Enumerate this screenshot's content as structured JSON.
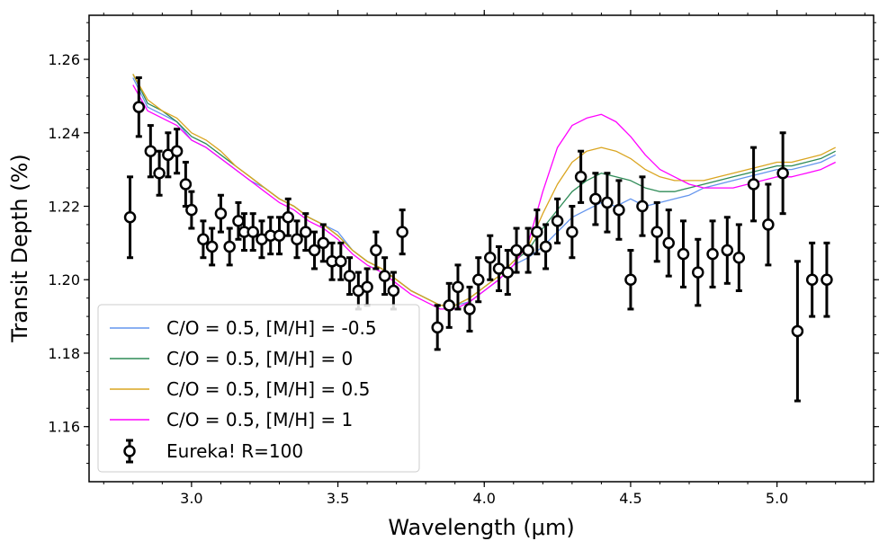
{
  "chart_data": {
    "type": "line",
    "xlabel": "Wavelength (μm)",
    "ylabel": "Transit Depth (%)",
    "xlim": [
      2.65,
      5.33
    ],
    "ylim": [
      1.145,
      1.272
    ],
    "x_ticks": [
      "3.0",
      "3.5",
      "4.0",
      "4.5",
      "5.0"
    ],
    "y_ticks": [
      "1.16",
      "1.18",
      "1.20",
      "1.22",
      "1.24",
      "1.26"
    ],
    "legend_position": "lower-left",
    "grid": false,
    "series": [
      {
        "name": "C/O = 0.5, [M/H] = -0.5",
        "color": "#6495ed",
        "x": [
          2.8,
          2.85,
          2.9,
          2.95,
          3.0,
          3.05,
          3.1,
          3.15,
          3.2,
          3.25,
          3.3,
          3.35,
          3.4,
          3.45,
          3.5,
          3.55,
          3.6,
          3.65,
          3.7,
          3.75,
          3.8,
          3.85,
          3.9,
          3.95,
          4.0,
          4.05,
          4.1,
          4.15,
          4.2,
          4.25,
          4.3,
          4.35,
          4.4,
          4.45,
          4.5,
          4.55,
          4.6,
          4.65,
          4.7,
          4.75,
          4.8,
          4.85,
          4.9,
          4.95,
          5.0,
          5.05,
          5.1,
          5.15,
          5.2
        ],
        "y": [
          1.255,
          1.247,
          1.245,
          1.243,
          1.238,
          1.236,
          1.233,
          1.23,
          1.227,
          1.225,
          1.222,
          1.22,
          1.217,
          1.215,
          1.213,
          1.208,
          1.205,
          1.203,
          1.2,
          1.197,
          1.195,
          1.193,
          1.193,
          1.194,
          1.197,
          1.2,
          1.204,
          1.206,
          1.209,
          1.213,
          1.217,
          1.219,
          1.221,
          1.22,
          1.222,
          1.22,
          1.221,
          1.222,
          1.223,
          1.225,
          1.226,
          1.227,
          1.228,
          1.229,
          1.23,
          1.23,
          1.231,
          1.232,
          1.234
        ]
      },
      {
        "name": "C/O = 0.5, [M/H] = 0",
        "color": "#2e8b57",
        "x": [
          2.8,
          2.85,
          2.9,
          2.95,
          3.0,
          3.05,
          3.1,
          3.15,
          3.2,
          3.25,
          3.3,
          3.35,
          3.4,
          3.45,
          3.5,
          3.55,
          3.6,
          3.65,
          3.7,
          3.75,
          3.8,
          3.85,
          3.9,
          3.95,
          4.0,
          4.05,
          4.1,
          4.15,
          4.2,
          4.25,
          4.3,
          4.35,
          4.4,
          4.45,
          4.5,
          4.55,
          4.6,
          4.65,
          4.7,
          4.75,
          4.8,
          4.85,
          4.9,
          4.95,
          5.0,
          5.05,
          5.1,
          5.15,
          5.2
        ],
        "y": [
          1.256,
          1.248,
          1.246,
          1.243,
          1.239,
          1.237,
          1.234,
          1.231,
          1.228,
          1.225,
          1.222,
          1.22,
          1.217,
          1.215,
          1.212,
          1.208,
          1.205,
          1.203,
          1.2,
          1.197,
          1.195,
          1.193,
          1.193,
          1.195,
          1.198,
          1.201,
          1.205,
          1.208,
          1.214,
          1.219,
          1.224,
          1.227,
          1.229,
          1.228,
          1.227,
          1.225,
          1.224,
          1.224,
          1.225,
          1.226,
          1.227,
          1.228,
          1.229,
          1.23,
          1.231,
          1.231,
          1.232,
          1.233,
          1.235
        ]
      },
      {
        "name": "C/O = 0.5, [M/H] = 0.5",
        "color": "#daa520",
        "x": [
          2.8,
          2.85,
          2.9,
          2.95,
          3.0,
          3.05,
          3.1,
          3.15,
          3.2,
          3.25,
          3.3,
          3.35,
          3.4,
          3.45,
          3.5,
          3.55,
          3.6,
          3.65,
          3.7,
          3.75,
          3.8,
          3.85,
          3.9,
          3.95,
          4.0,
          4.05,
          4.1,
          4.15,
          4.2,
          4.25,
          4.3,
          4.35,
          4.4,
          4.45,
          4.5,
          4.55,
          4.6,
          4.65,
          4.7,
          4.75,
          4.8,
          4.85,
          4.9,
          4.95,
          5.0,
          5.05,
          5.1,
          5.15,
          5.2
        ],
        "y": [
          1.256,
          1.249,
          1.246,
          1.244,
          1.24,
          1.238,
          1.235,
          1.231,
          1.228,
          1.225,
          1.222,
          1.22,
          1.217,
          1.215,
          1.212,
          1.208,
          1.205,
          1.203,
          1.2,
          1.197,
          1.195,
          1.193,
          1.193,
          1.195,
          1.198,
          1.201,
          1.205,
          1.209,
          1.218,
          1.226,
          1.232,
          1.235,
          1.236,
          1.235,
          1.233,
          1.23,
          1.228,
          1.227,
          1.227,
          1.227,
          1.228,
          1.229,
          1.23,
          1.231,
          1.232,
          1.232,
          1.233,
          1.234,
          1.236
        ]
      },
      {
        "name": "C/O = 0.5, [M/H] = 1",
        "color": "#ff00ff",
        "x": [
          2.8,
          2.85,
          2.9,
          2.95,
          3.0,
          3.05,
          3.1,
          3.15,
          3.2,
          3.25,
          3.3,
          3.35,
          3.4,
          3.45,
          3.5,
          3.55,
          3.6,
          3.65,
          3.7,
          3.75,
          3.8,
          3.85,
          3.9,
          3.95,
          4.0,
          4.05,
          4.1,
          4.15,
          4.2,
          4.25,
          4.3,
          4.35,
          4.4,
          4.45,
          4.5,
          4.55,
          4.6,
          4.65,
          4.7,
          4.75,
          4.8,
          4.85,
          4.9,
          4.95,
          5.0,
          5.05,
          5.1,
          5.15,
          5.2
        ],
        "y": [
          1.253,
          1.246,
          1.244,
          1.242,
          1.238,
          1.236,
          1.233,
          1.23,
          1.227,
          1.224,
          1.221,
          1.219,
          1.216,
          1.214,
          1.211,
          1.207,
          1.204,
          1.202,
          1.199,
          1.196,
          1.194,
          1.192,
          1.192,
          1.194,
          1.197,
          1.2,
          1.204,
          1.21,
          1.224,
          1.236,
          1.242,
          1.244,
          1.245,
          1.243,
          1.239,
          1.234,
          1.23,
          1.228,
          1.226,
          1.225,
          1.225,
          1.225,
          1.226,
          1.227,
          1.228,
          1.228,
          1.229,
          1.23,
          1.232
        ]
      }
    ],
    "points": {
      "name": "Eureka! R=100",
      "x": [
        2.79,
        2.82,
        2.86,
        2.89,
        2.92,
        2.95,
        2.98,
        3.0,
        3.04,
        3.07,
        3.1,
        3.13,
        3.16,
        3.18,
        3.21,
        3.24,
        3.27,
        3.3,
        3.33,
        3.36,
        3.39,
        3.42,
        3.45,
        3.48,
        3.51,
        3.54,
        3.57,
        3.6,
        3.63,
        3.66,
        3.69,
        3.72,
        3.84,
        3.88,
        3.91,
        3.95,
        3.98,
        4.02,
        4.05,
        4.08,
        4.11,
        4.15,
        4.18,
        4.21,
        4.25,
        4.3,
        4.33,
        4.38,
        4.42,
        4.46,
        4.5,
        4.54,
        4.59,
        4.63,
        4.68,
        4.73,
        4.78,
        4.83,
        4.87,
        4.92,
        4.97,
        5.02,
        5.07,
        5.12,
        5.17
      ],
      "y": [
        1.217,
        1.247,
        1.235,
        1.229,
        1.234,
        1.235,
        1.226,
        1.219,
        1.211,
        1.209,
        1.218,
        1.209,
        1.216,
        1.213,
        1.213,
        1.211,
        1.212,
        1.212,
        1.217,
        1.211,
        1.213,
        1.208,
        1.21,
        1.205,
        1.205,
        1.201,
        1.197,
        1.198,
        1.208,
        1.201,
        1.197,
        1.213,
        1.187,
        1.193,
        1.198,
        1.192,
        1.2,
        1.206,
        1.203,
        1.202,
        1.208,
        1.208,
        1.213,
        1.209,
        1.216,
        1.213,
        1.228,
        1.222,
        1.221,
        1.219,
        1.2,
        1.22,
        1.213,
        1.21,
        1.207,
        1.202,
        1.207,
        1.208,
        1.206,
        1.226,
        1.215,
        1.229,
        1.186,
        1.2,
        1.2
      ],
      "yerr": [
        0.011,
        0.008,
        0.007,
        0.006,
        0.006,
        0.006,
        0.006,
        0.005,
        0.005,
        0.005,
        0.005,
        0.005,
        0.005,
        0.005,
        0.005,
        0.005,
        0.005,
        0.005,
        0.005,
        0.005,
        0.005,
        0.005,
        0.005,
        0.005,
        0.005,
        0.005,
        0.005,
        0.005,
        0.005,
        0.005,
        0.005,
        0.006,
        0.006,
        0.006,
        0.006,
        0.006,
        0.006,
        0.006,
        0.006,
        0.006,
        0.006,
        0.006,
        0.006,
        0.006,
        0.006,
        0.007,
        0.007,
        0.007,
        0.008,
        0.008,
        0.008,
        0.008,
        0.008,
        0.009,
        0.009,
        0.009,
        0.009,
        0.009,
        0.009,
        0.01,
        0.011,
        0.011,
        0.019,
        0.01,
        0.01
      ]
    }
  }
}
